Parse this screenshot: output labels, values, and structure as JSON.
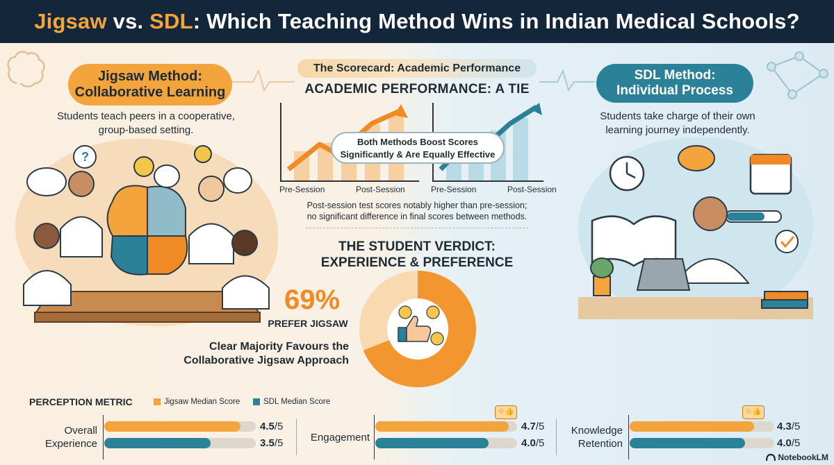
{
  "title": {
    "part1": "Jigsaw",
    "part2": " vs. ",
    "part3": "SDL",
    "part4": ": Which Teaching Method Wins in Indian Medical Schools?"
  },
  "jigsaw": {
    "heading_line1": "Jigsaw Method:",
    "heading_line2": "Collaborative Learning",
    "desc_line1": "Students teach peers in a cooperative,",
    "desc_line2": "group-based setting."
  },
  "sdl": {
    "heading_line1": "SDL Method:",
    "heading_line2": "Individual Process",
    "desc_line1": "Students take charge of their own",
    "desc_line2": "learning journey independently."
  },
  "scorecard": {
    "pill": "The Scorecard: Academic Performance",
    "title": "ACADEMIC PERFORMANCE: A TIE",
    "callout_line1": "Both Methods Boost Scores",
    "callout_line2": "Significantly & Are Equally Effective",
    "pre": "Pre-Session",
    "post": "Post-Session",
    "note_line1": "Post-session test scores notably higher than pre-session;",
    "note_line2": "no significant difference in final scores between methods."
  },
  "verdict": {
    "title_line1": "THE STUDENT VERDICT:",
    "title_line2": "EXPERIENCE & PREFERENCE",
    "percent": "69%",
    "percent_label": "PREFER JIGSAW",
    "majority_line1": "Clear Majority Favours the",
    "majority_line2": "Collaborative Jigsaw Approach",
    "share": 0.69
  },
  "perception": {
    "title": "PERCEPTION METRIC",
    "legend_jigsaw": "Jigsaw Median Score",
    "legend_sdl": "SDL Median Score",
    "metrics": [
      {
        "label_line1": "Overall",
        "label_line2": "Experience",
        "jigsaw": "4.5",
        "sdl": "3.5",
        "suffix": "/5",
        "jigsaw_value": 4.5,
        "sdl_value": 3.5
      },
      {
        "label_line1": "Engagement",
        "label_line2": "",
        "jigsaw": "4.7",
        "sdl": "4.0",
        "suffix": "/5",
        "jigsaw_value": 4.7,
        "sdl_value": 4.0
      },
      {
        "label_line1": "Knowledge",
        "label_line2": "Retention",
        "jigsaw": "4.3",
        "sdl": "4.0",
        "suffix": "/5",
        "jigsaw_value": 4.3,
        "sdl_value": 4.0
      }
    ]
  },
  "brand": "NotebookLM",
  "colors": {
    "jigsaw": "#f3a43c",
    "jigsaw_dark": "#f08a24",
    "sdl": "#2b8298",
    "navy": "#14263a"
  }
}
